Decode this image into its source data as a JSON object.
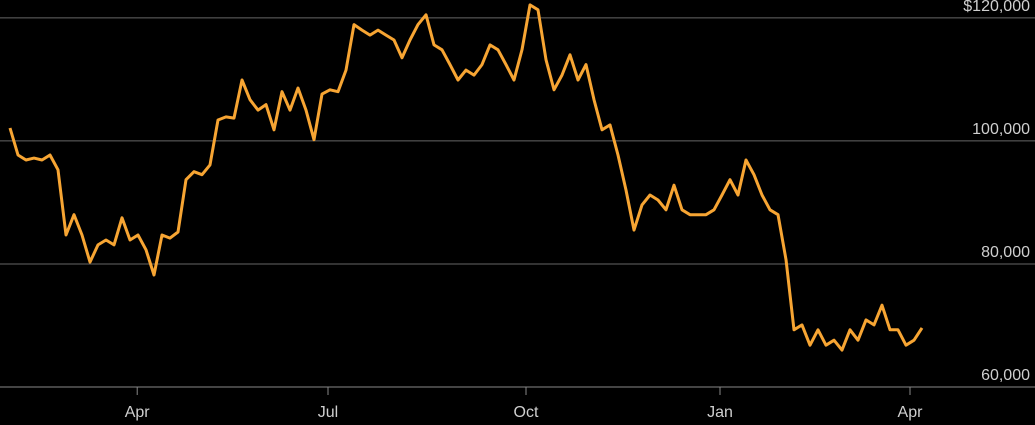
{
  "chart_data": {
    "type": "line",
    "color": "#f7a533",
    "values": [
      102100,
      97700,
      96900,
      97200,
      96900,
      97700,
      95300,
      84700,
      88000,
      84700,
      80300,
      83100,
      83900,
      83100,
      87500,
      83900,
      84700,
      82300,
      78200,
      84700,
      84200,
      85200,
      93700,
      95000,
      94500,
      96100,
      103400,
      103900,
      103700,
      109900,
      106700,
      105000,
      105900,
      101800,
      108000,
      105000,
      108600,
      105000,
      100200,
      107600,
      108300,
      108000,
      111500,
      118900,
      118000,
      117200,
      118000,
      117200,
      116400,
      113500,
      116400,
      118900,
      120500,
      115600,
      114800,
      112400,
      109900,
      111500,
      110700,
      112400,
      115600,
      114800,
      112400,
      109900,
      114800,
      122100,
      121300,
      113200,
      108300,
      110700,
      114000,
      109900,
      112400,
      106700,
      101800,
      102600,
      97700,
      92000,
      85500,
      89600,
      91200,
      90400,
      88800,
      92800,
      88800,
      88000,
      88000,
      88000,
      88800,
      91200,
      93700,
      91200,
      96900,
      94500,
      91200,
      88800,
      88000,
      80700,
      69300,
      70100,
      66800,
      69300,
      66800,
      67600,
      66000,
      69300,
      67600,
      70900,
      70100,
      73300,
      69300,
      69300,
      66800,
      67600,
      69600
    ],
    "xlim": [
      0,
      114
    ],
    "xticks": [
      {
        "value": 15.9,
        "label": "Apr"
      },
      {
        "value": 39.75,
        "label": "Jul"
      },
      {
        "value": 64.5,
        "label": "Oct"
      },
      {
        "value": 88.75,
        "label": "Jan"
      },
      {
        "value": 112.5,
        "label": "Apr"
      }
    ],
    "ylim": [
      60000,
      122900
    ],
    "yticks": [
      {
        "value": 60000,
        "label": "60,000"
      },
      {
        "value": 80000,
        "label": "80,000"
      },
      {
        "value": 100000,
        "label": "100,000"
      },
      {
        "value": 120000,
        "label": "$120,000"
      }
    ],
    "grid": true
  }
}
